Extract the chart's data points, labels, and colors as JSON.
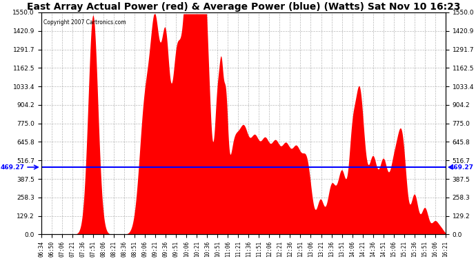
{
  "title": "East Array Actual Power (red) & Average Power (blue) (Watts) Sat Nov 10 16:23",
  "copyright": "Copyright 2007 Cartronics.com",
  "avg_power": 469.27,
  "ymax": 1550.0,
  "ymin": 0.0,
  "yticks": [
    0.0,
    129.2,
    258.3,
    387.5,
    516.7,
    645.8,
    775.0,
    904.2,
    1033.4,
    1162.5,
    1291.7,
    1420.9,
    1550.0
  ],
  "ytick_labels": [
    "0.0",
    "129.2",
    "258.3",
    "387.5",
    "516.7",
    "645.8",
    "775.0",
    "904.2",
    "1033.4",
    "1162.5",
    "1291.7",
    "1420.9",
    "1550.0"
  ],
  "background_color": "#ffffff",
  "fill_color": "#ff0000",
  "line_color": "#0000ff",
  "grid_color": "#888888",
  "title_fontsize": 10,
  "xtick_labels": [
    "06:34",
    "06:50",
    "07:06",
    "07:21",
    "07:36",
    "07:51",
    "08:06",
    "08:21",
    "08:36",
    "08:51",
    "09:06",
    "09:21",
    "09:36",
    "09:51",
    "10:06",
    "10:21",
    "10:36",
    "10:51",
    "11:06",
    "11:21",
    "11:36",
    "11:51",
    "12:06",
    "12:21",
    "12:36",
    "12:51",
    "13:06",
    "13:21",
    "13:36",
    "13:51",
    "14:06",
    "14:21",
    "14:36",
    "14:51",
    "15:06",
    "15:21",
    "15:36",
    "15:51",
    "16:06",
    "16:21"
  ]
}
